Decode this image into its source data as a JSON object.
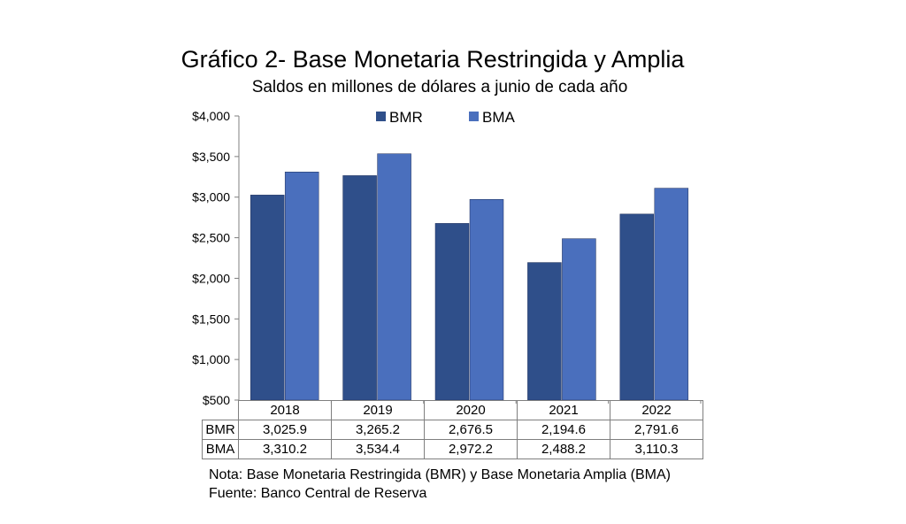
{
  "title": "Gráfico 2- Base Monetaria Restringida y Amplia",
  "subtitle": "Saldos en millones de dólares a junio de cada año",
  "note": "Nota: Base Monetaria Restringida (BMR) y Base Monetaria Amplia (BMA)",
  "source": "Fuente: Banco Central de Reserva",
  "chart_data": {
    "type": "bar",
    "title": "Gráfico 2- Base Monetaria Restringida y Amplia",
    "subtitle": "Saldos en millones de dólares a junio de cada año",
    "categories": [
      "2018",
      "2019",
      "2020",
      "2021",
      "2022"
    ],
    "series": [
      {
        "name": "BMR",
        "values": [
          3025.9,
          3265.2,
          2676.5,
          2194.6,
          2791.6
        ],
        "labels": [
          "3,025.9",
          "3,265.2",
          "2,676.5",
          "2,194.6",
          "2,791.6"
        ],
        "color": "#2f4f8a"
      },
      {
        "name": "BMA",
        "values": [
          3310.2,
          3534.4,
          2972.2,
          2488.2,
          3110.3
        ],
        "labels": [
          "3,310.2",
          "3,534.4",
          "2,972.2",
          "2,488.2",
          "3,110.3"
        ],
        "color": "#4a6fbd"
      }
    ],
    "ylim": [
      500,
      4000
    ],
    "yticks": [
      500,
      1000,
      1500,
      2000,
      2500,
      3000,
      3500,
      4000
    ],
    "ytick_labels": [
      "$500",
      "$1,000",
      "$1,500",
      "$2,000",
      "$2,500",
      "$3,000",
      "$3,500",
      "$4,000"
    ],
    "legend": "top-center",
    "grid": false,
    "data_table": true
  }
}
